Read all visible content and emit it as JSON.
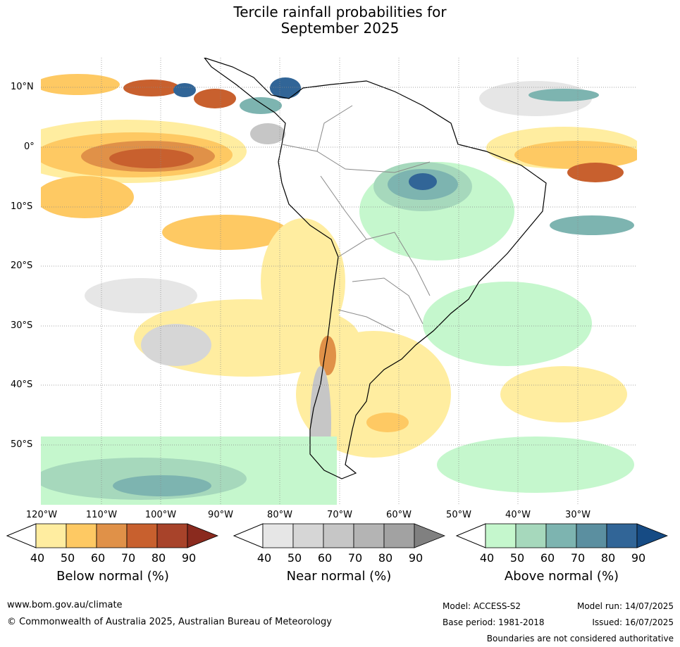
{
  "title": {
    "line1": "Tercile rainfall probabilities for",
    "line2": "September 2025"
  },
  "lon_labels": [
    "120°W",
    "110°W",
    "100°W",
    "90°W",
    "80°W",
    "70°W",
    "60°W",
    "50°W",
    "40°W",
    "30°W"
  ],
  "lat_labels": [
    "10°N",
    "0°",
    "10°S",
    "20°S",
    "30°S",
    "40°S",
    "50°S"
  ],
  "colorbars": [
    {
      "title": "Below normal (%)",
      "ticks": [
        "40",
        "50",
        "60",
        "70",
        "80",
        "90"
      ],
      "colors": [
        "#ffeda0",
        "#fec963",
        "#e09148",
        "#c8602e",
        "#a8432a",
        "#8a2a1e"
      ]
    },
    {
      "title": "Near normal (%)",
      "ticks": [
        "40",
        "50",
        "60",
        "70",
        "80",
        "90"
      ],
      "colors": [
        "#e6e6e6",
        "#d6d6d6",
        "#c6c6c6",
        "#b4b4b4",
        "#a2a2a2",
        "#808080"
      ]
    },
    {
      "title": "Above normal (%)",
      "ticks": [
        "40",
        "50",
        "60",
        "70",
        "80",
        "90"
      ],
      "colors": [
        "#c5f7cd",
        "#a6d8bc",
        "#7db4b0",
        "#5b8fa0",
        "#316597",
        "#164b84"
      ]
    }
  ],
  "footer": {
    "url": "www.bom.gov.au/climate",
    "copyright": "© Commonwealth of Australia 2025, Australian Bureau of Meteorology",
    "model": "Model: ACCESS-S2",
    "base_period": "Base period: 1981-2018",
    "model_run": "Model run: 14/07/2025",
    "issued": "Issued: 16/07/2025",
    "disclaimer": "Boundaries are not considered authoritative"
  },
  "colors": {
    "land_outline": "#000000",
    "border": "#8a8a8a",
    "grid": "#888888"
  }
}
